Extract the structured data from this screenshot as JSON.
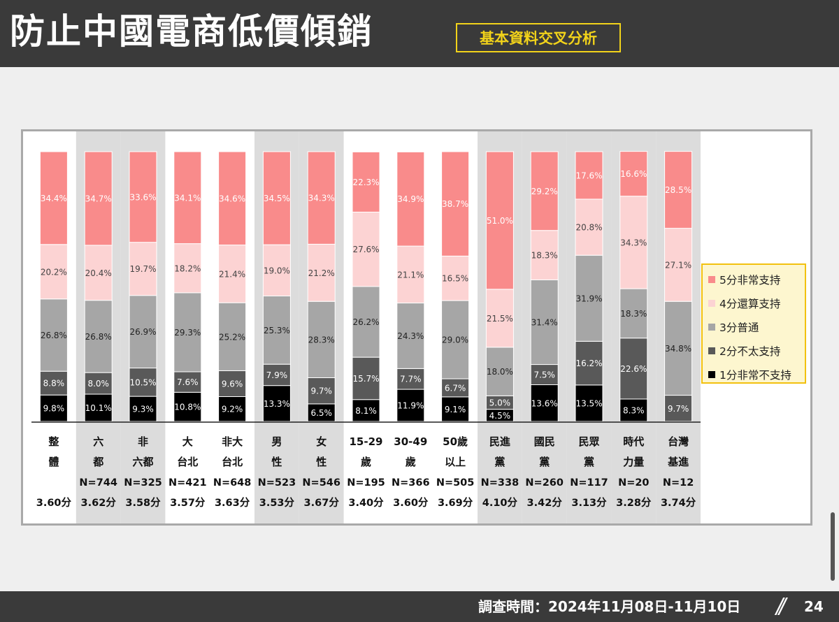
{
  "header": {
    "title": "防止中國電商低價傾銷",
    "badge": "基本資料交叉分析"
  },
  "footer": {
    "survey_date": "調查時間：2024年11月08日-11月10日",
    "page_number": "24"
  },
  "colors": {
    "header_bg": "#3a3a3a",
    "badge": "#f2d31a",
    "score5": "#f98b8b",
    "score4": "#fcd3d3",
    "score3": "#a6a6a6",
    "score2": "#595959",
    "score1": "#000000",
    "group_bg": "#dcdcdc",
    "legend_border": "#f2c10f",
    "legend_bg": "#fdf6cf"
  },
  "legend": {
    "items": [
      {
        "label": "5分非常支持",
        "color": "#f98b8b"
      },
      {
        "label": "4分還算支持",
        "color": "#fcd3d3"
      },
      {
        "label": "3分普通",
        "color": "#a6a6a6"
      },
      {
        "label": "2分不太支持",
        "color": "#595959"
      },
      {
        "label": "1分非常不支持",
        "color": "#000000"
      }
    ]
  },
  "chart_data": {
    "type": "bar",
    "stacked": true,
    "percent": true,
    "ylim": [
      0,
      100
    ],
    "categories": [
      {
        "label_lines": [
          "整",
          "體"
        ],
        "n": "",
        "mean": "3.60分"
      },
      {
        "label_lines": [
          "六",
          "都"
        ],
        "n": "N=744",
        "mean": "3.62分"
      },
      {
        "label_lines": [
          "非",
          "六都"
        ],
        "n": "N=325",
        "mean": "3.58分"
      },
      {
        "label_lines": [
          "大",
          "台北"
        ],
        "n": "N=421",
        "mean": "3.57分"
      },
      {
        "label_lines": [
          "非大",
          "台北"
        ],
        "n": "N=648",
        "mean": "3.63分"
      },
      {
        "label_lines": [
          "男",
          "性"
        ],
        "n": "N=523",
        "mean": "3.53分"
      },
      {
        "label_lines": [
          "女",
          "性"
        ],
        "n": "N=546",
        "mean": "3.67分"
      },
      {
        "label_lines": [
          "15-29",
          "歲"
        ],
        "n": "N=195",
        "mean": "3.40分"
      },
      {
        "label_lines": [
          "30-49",
          "歲"
        ],
        "n": "N=366",
        "mean": "3.60分"
      },
      {
        "label_lines": [
          "50歲",
          "以上"
        ],
        "n": "N=505",
        "mean": "3.69分"
      },
      {
        "label_lines": [
          "民進",
          "黨"
        ],
        "n": "N=338",
        "mean": "4.10分"
      },
      {
        "label_lines": [
          "國民",
          "黨"
        ],
        "n": "N=260",
        "mean": "3.42分"
      },
      {
        "label_lines": [
          "民眾",
          "黨"
        ],
        "n": "N=117",
        "mean": "3.13分"
      },
      {
        "label_lines": [
          "時代",
          "力量"
        ],
        "n": "N=20",
        "mean": "3.28分"
      },
      {
        "label_lines": [
          "台灣",
          "基進"
        ],
        "n": "N=12",
        "mean": "3.74分"
      }
    ],
    "shaded_categories": [
      1,
      2,
      5,
      6,
      10,
      11,
      12,
      13,
      14
    ],
    "series": [
      {
        "name": "1分非常不支持",
        "values": [
          9.8,
          10.1,
          9.3,
          10.8,
          9.2,
          13.3,
          6.5,
          8.1,
          11.9,
          9.1,
          4.5,
          13.6,
          13.5,
          8.3,
          0
        ]
      },
      {
        "name": "2分不太支持",
        "values": [
          8.8,
          8.0,
          10.5,
          7.6,
          9.6,
          7.9,
          9.7,
          15.7,
          7.7,
          6.7,
          5.0,
          7.5,
          16.2,
          22.6,
          9.7
        ]
      },
      {
        "name": "3分普通",
        "values": [
          26.8,
          26.8,
          26.9,
          29.3,
          25.2,
          25.3,
          28.3,
          26.2,
          24.3,
          29.0,
          18.0,
          31.4,
          31.9,
          18.3,
          34.8
        ]
      },
      {
        "name": "4分還算支持",
        "values": [
          20.2,
          20.4,
          19.7,
          18.2,
          21.4,
          19.0,
          21.2,
          27.6,
          21.1,
          16.5,
          21.5,
          18.3,
          20.8,
          34.3,
          27.1
        ]
      },
      {
        "name": "5分非常支持",
        "values": [
          34.4,
          34.7,
          33.6,
          34.1,
          34.6,
          34.5,
          34.3,
          22.3,
          34.9,
          38.7,
          51.0,
          29.2,
          17.6,
          16.6,
          28.5
        ]
      }
    ]
  }
}
